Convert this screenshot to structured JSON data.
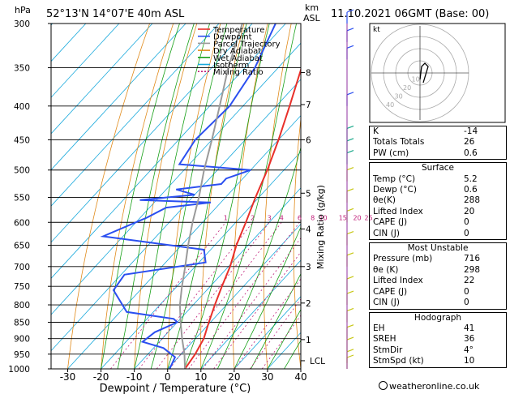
{
  "header": {
    "p_unit": "hPa",
    "location": "52°13'N 14°07'E 40m ASL",
    "km_label": "km",
    "asl_label": "ASL",
    "datetime": "11.10.2021 06GMT (Base: 00)"
  },
  "legend": [
    "Temperature",
    "Dewpoint",
    "Parcel Trajectory",
    "Dry Adiabat",
    "Wet Adiabat",
    "Isotherm",
    "Mixing Ratio"
  ],
  "colors": {
    "temperature": "#e8302a",
    "dewpoint": "#2b4ff0",
    "parcel": "#9a9a9a",
    "dry_adiabat": "#e08a1a",
    "wet_adiabat": "#17a017",
    "isotherm": "#19a9dc",
    "mixing_ratio": "#c0207a",
    "wind": "#c7c715"
  },
  "xaxis": {
    "label": "Dewpoint / Temperature (°C)",
    "ticks": [
      "-30",
      "-20",
      "-10",
      "0",
      "10",
      "20",
      "30",
      "40"
    ]
  },
  "yaxis": {
    "ticks": [
      "300",
      "350",
      "400",
      "450",
      "500",
      "550",
      "600",
      "650",
      "700",
      "750",
      "800",
      "850",
      "900",
      "950",
      "1000"
    ]
  },
  "km_ticks": [
    "8",
    "7",
    "6",
    "5",
    "4",
    "3",
    "2",
    "1",
    "LCL"
  ],
  "mixing_ratio_label": "Mixing Ratio (g/kg)",
  "mixing_ratio_values": [
    "1",
    "2",
    "3",
    "4",
    "6",
    "8",
    "10",
    "15",
    "20",
    "25"
  ],
  "hodograph": {
    "unit": "kt",
    "rings": [
      "10",
      "20",
      "30",
      "40"
    ]
  },
  "indices": {
    "K": {
      "label": "K",
      "value": "-14"
    },
    "TT": {
      "label": "Totals Totals",
      "value": "26"
    },
    "PW": {
      "label": "PW (cm)",
      "value": "0.6"
    }
  },
  "surface": {
    "title": "Surface",
    "rows": [
      {
        "label": "Temp (°C)",
        "value": "5.2"
      },
      {
        "label": "Dewp (°C)",
        "value": "0.6"
      },
      {
        "label": "θe(K)",
        "value": "288"
      },
      {
        "label": "Lifted Index",
        "value": "20"
      },
      {
        "label": "CAPE (J)",
        "value": "0"
      },
      {
        "label": "CIN (J)",
        "value": "0"
      }
    ]
  },
  "most_unstable": {
    "title": "Most Unstable",
    "rows": [
      {
        "label": "Pressure (mb)",
        "value": "716"
      },
      {
        "label": "θe (K)",
        "value": "298"
      },
      {
        "label": "Lifted Index",
        "value": "22"
      },
      {
        "label": "CAPE (J)",
        "value": "0"
      },
      {
        "label": "CIN (J)",
        "value": "0"
      }
    ]
  },
  "hodo_stats": {
    "title": "Hodograph",
    "rows": [
      {
        "label": "EH",
        "value": "41"
      },
      {
        "label": "SREH",
        "value": "36"
      },
      {
        "label": "StmDir",
        "value": "4°"
      },
      {
        "label": "StmSpd (kt)",
        "value": "10"
      }
    ]
  },
  "footer": "weatheronline.co.uk",
  "chart_data": {
    "type": "line",
    "xlabel": "Dewpoint / Temperature (°C)",
    "ylabel": "hPa",
    "xlim": [
      -35,
      40
    ],
    "ylim": [
      1000,
      300
    ],
    "series": [
      {
        "name": "Temperature",
        "points": [
          [
            1000,
            5.2
          ],
          [
            950,
            4.2
          ],
          [
            900,
            2.5
          ],
          [
            850,
            -0.5
          ],
          [
            800,
            -3.5
          ],
          [
            750,
            -6.5
          ],
          [
            700,
            -9.5
          ],
          [
            650,
            -13.5
          ],
          [
            600,
            -17
          ],
          [
            550,
            -21
          ],
          [
            500,
            -25
          ],
          [
            450,
            -30
          ],
          [
            400,
            -36
          ],
          [
            350,
            -43
          ],
          [
            300,
            -50
          ]
        ]
      },
      {
        "name": "Dewpoint",
        "points": [
          [
            1000,
            0.6
          ],
          [
            960,
            -1
          ],
          [
            930,
            -7
          ],
          [
            910,
            -15
          ],
          [
            880,
            -14
          ],
          [
            850,
            -10
          ],
          [
            840,
            -12
          ],
          [
            820,
            -28
          ],
          [
            760,
            -38
          ],
          [
            720,
            -39
          ],
          [
            690,
            -18
          ],
          [
            660,
            -22
          ],
          [
            630,
            -56
          ],
          [
            590,
            -48
          ],
          [
            570,
            -45
          ],
          [
            560,
            -33
          ],
          [
            555,
            -55
          ],
          [
            545,
            -40
          ],
          [
            535,
            -47
          ],
          [
            525,
            -35
          ],
          [
            515,
            -35
          ],
          [
            500,
            -30
          ],
          [
            490,
            -53
          ],
          [
            450,
            -55
          ],
          [
            400,
            -54
          ],
          [
            350,
            -57
          ],
          [
            300,
            -63
          ]
        ]
      },
      {
        "name": "Parcel Trajectory",
        "points": [
          [
            1000,
            5.2
          ],
          [
            950,
            1
          ],
          [
            900,
            -4
          ],
          [
            850,
            -9
          ],
          [
            800,
            -14
          ],
          [
            750,
            -18.5
          ],
          [
            700,
            -23
          ],
          [
            650,
            -28
          ],
          [
            600,
            -33
          ],
          [
            550,
            -38
          ],
          [
            500,
            -44
          ],
          [
            450,
            -50
          ],
          [
            400,
            -57
          ],
          [
            350,
            -65
          ],
          [
            300,
            -73
          ]
        ]
      }
    ]
  }
}
